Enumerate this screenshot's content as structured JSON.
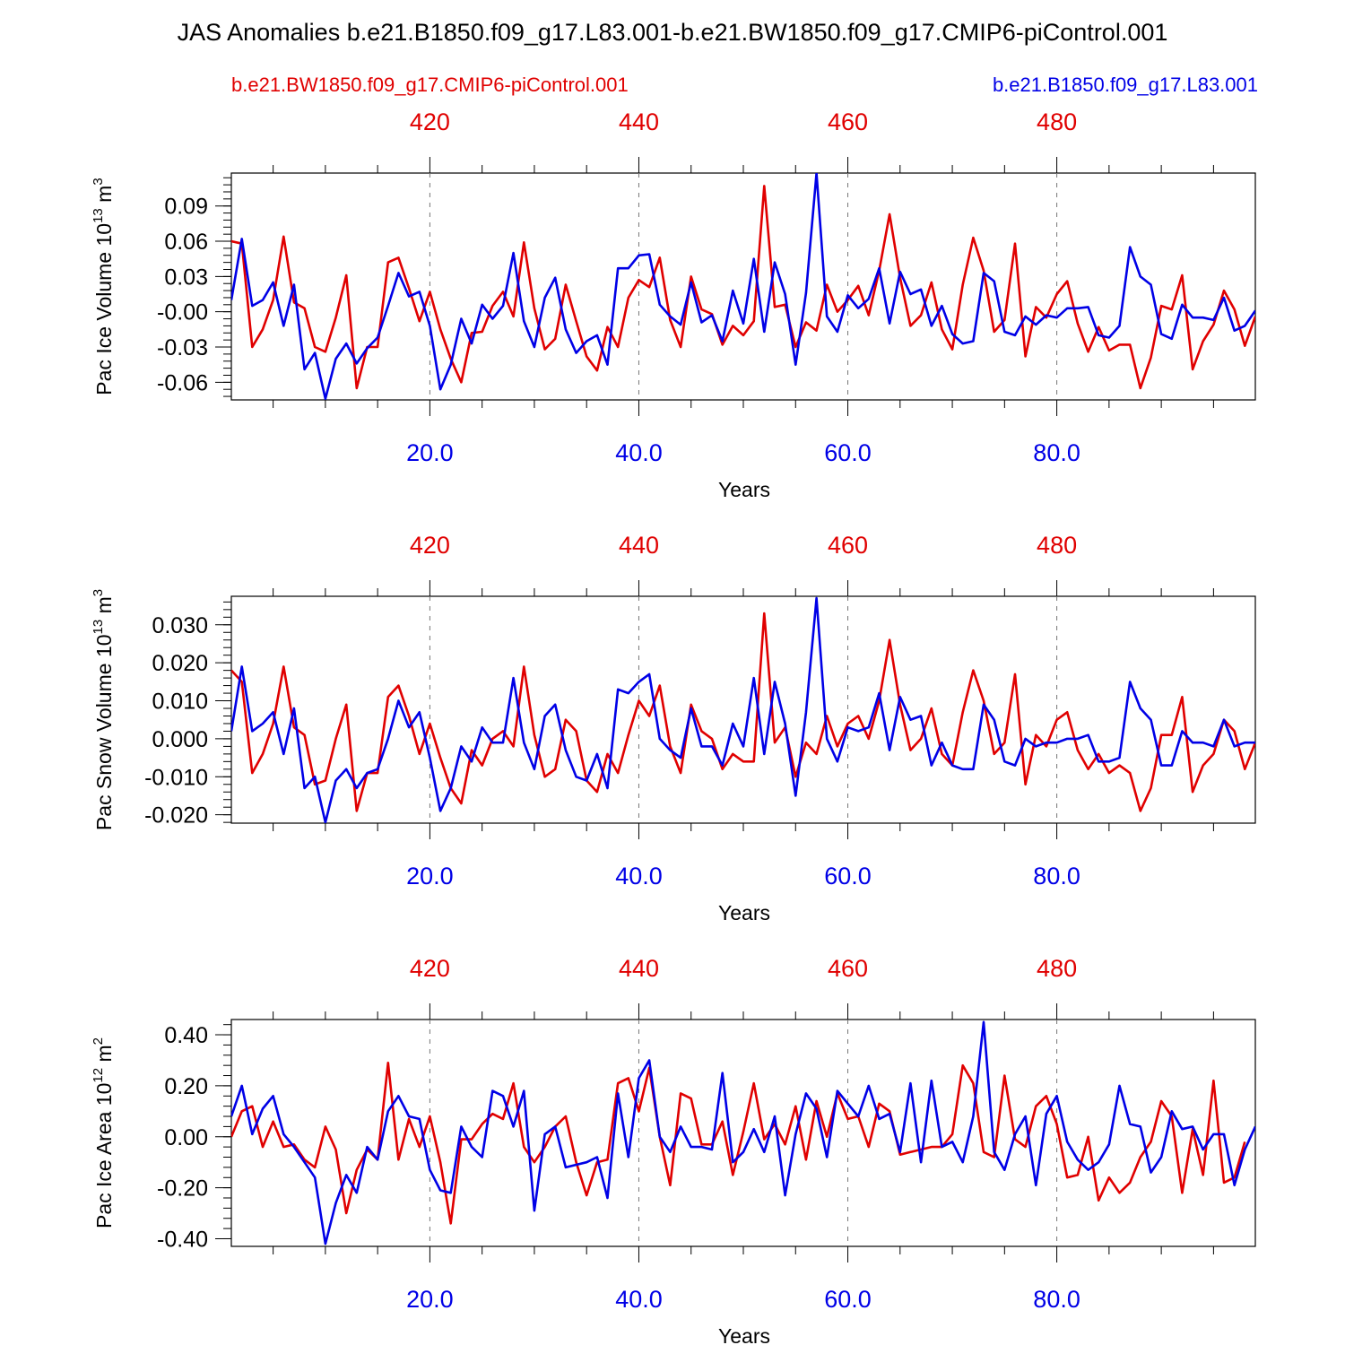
{
  "title": "JAS Anomalies b.e21.B1850.f09_g17.L83.001-b.e21.BW1850.f09_g17.CMIP6-piControl.001",
  "legend": {
    "left_label": "b.e21.BW1850.f09_g17.CMIP6-piControl.001",
    "right_label": "b.e21.B1850.f09_g17.L83.001"
  },
  "colors": {
    "case1": "#e00000",
    "case2": "#0000e6",
    "grid": "#777777"
  },
  "chart_data": [
    {
      "type": "line",
      "ylabel_main": "Pac Ice Volume 10",
      "ylabel_exp": "13",
      "ylabel_unit": " m",
      "ylabel_unit_exp": "3",
      "xlabel": "Years",
      "xlim": [
        1,
        99
      ],
      "top_xlim": [
        401,
        499
      ],
      "ylim": [
        -0.075,
        0.118
      ],
      "yticks": [
        -0.06,
        -0.03,
        0.0,
        0.03,
        0.06,
        0.09
      ],
      "ytick_labels": [
        "-0.06",
        "-0.03",
        "-0.00",
        "0.03",
        "0.06",
        "0.09"
      ],
      "yminor_step": 0.006,
      "xticks": [
        20,
        40,
        60,
        80
      ],
      "xtick_labels": [
        "20.0",
        "40.0",
        "60.0",
        "80.0"
      ],
      "top_xticks": [
        420,
        440,
        460,
        480
      ],
      "top_xtick_labels": [
        "420",
        "440",
        "460",
        "480"
      ],
      "series": [
        {
          "name": "b.e21.BW1850.f09_g17.CMIP6-piControl.001",
          "color": "#e00000",
          "values": [
            0.06,
            0.058,
            -0.03,
            -0.015,
            0.01,
            0.064,
            0.008,
            0.003,
            -0.03,
            -0.034,
            -0.005,
            0.031,
            -0.065,
            -0.03,
            -0.03,
            0.042,
            0.046,
            0.02,
            -0.008,
            0.017,
            -0.015,
            -0.04,
            -0.06,
            -0.018,
            -0.017,
            0.005,
            0.017,
            -0.004,
            0.059,
            0.003,
            -0.032,
            -0.023,
            0.023,
            -0.008,
            -0.038,
            -0.05,
            -0.013,
            -0.03,
            0.012,
            0.027,
            0.021,
            0.046,
            -0.007,
            -0.03,
            0.03,
            0.002,
            -0.002,
            -0.028,
            -0.012,
            -0.02,
            -0.008,
            0.107,
            0.004,
            0.006,
            -0.03,
            -0.009,
            -0.016,
            0.023,
            0.0,
            0.01,
            0.022,
            -0.003,
            0.035,
            0.083,
            0.029,
            -0.012,
            -0.003,
            0.025,
            -0.015,
            -0.032,
            0.023,
            0.063,
            0.035,
            -0.017,
            -0.007,
            0.058,
            -0.038,
            0.004,
            -0.005,
            0.015,
            0.026,
            -0.01,
            -0.034,
            -0.013,
            -0.033,
            -0.028,
            -0.028,
            -0.065,
            -0.039,
            0.005,
            0.002,
            0.031,
            -0.049,
            -0.025,
            -0.011,
            0.018,
            0.002,
            -0.029,
            -0.004
          ]
        },
        {
          "name": "b.e21.B1850.f09_g17.L83.001",
          "color": "#0000e6",
          "values": [
            0.01,
            0.062,
            0.005,
            0.01,
            0.025,
            -0.012,
            0.023,
            -0.049,
            -0.035,
            -0.074,
            -0.04,
            -0.027,
            -0.044,
            -0.031,
            -0.022,
            0.005,
            0.033,
            0.013,
            0.017,
            -0.012,
            -0.066,
            -0.045,
            -0.006,
            -0.027,
            0.006,
            -0.006,
            0.005,
            0.05,
            -0.008,
            -0.03,
            0.012,
            0.029,
            -0.015,
            -0.035,
            -0.025,
            -0.02,
            -0.045,
            0.037,
            0.037,
            0.048,
            0.049,
            0.006,
            -0.004,
            -0.011,
            0.025,
            -0.009,
            -0.003,
            -0.025,
            0.018,
            -0.01,
            0.045,
            -0.017,
            0.042,
            0.015,
            -0.045,
            0.016,
            0.118,
            -0.004,
            -0.017,
            0.014,
            0.003,
            0.011,
            0.037,
            -0.01,
            0.034,
            0.015,
            0.019,
            -0.012,
            0.005,
            -0.019,
            -0.027,
            -0.025,
            0.033,
            0.026,
            -0.017,
            -0.02,
            -0.004,
            -0.011,
            -0.003,
            -0.005,
            0.003,
            0.003,
            0.004,
            -0.02,
            -0.022,
            -0.012,
            0.055,
            0.03,
            0.023,
            -0.019,
            -0.023,
            0.006,
            -0.005,
            -0.005,
            -0.007,
            0.012,
            -0.016,
            -0.012,
            0.001
          ]
        }
      ]
    },
    {
      "type": "line",
      "ylabel_main": "Pac Snow Volume 10",
      "ylabel_exp": "13",
      "ylabel_unit": " m",
      "ylabel_unit_exp": "3",
      "xlabel": "Years",
      "xlim": [
        1,
        99
      ],
      "top_xlim": [
        401,
        499
      ],
      "ylim": [
        -0.0222,
        0.0375
      ],
      "yticks": [
        -0.02,
        -0.01,
        0.0,
        0.01,
        0.02,
        0.03
      ],
      "ytick_labels": [
        "-0.020",
        "-0.010",
        "0.000",
        "0.010",
        "0.020",
        "0.030"
      ],
      "yminor_step": 0.002,
      "xticks": [
        20,
        40,
        60,
        80
      ],
      "xtick_labels": [
        "20.0",
        "40.0",
        "60.0",
        "80.0"
      ],
      "top_xticks": [
        420,
        440,
        460,
        480
      ],
      "top_xtick_labels": [
        "420",
        "440",
        "460",
        "480"
      ],
      "series": [
        {
          "name": "b.e21.BW1850.f09_g17.CMIP6-piControl.001",
          "color": "#e00000",
          "values": [
            0.018,
            0.015,
            -0.009,
            -0.004,
            0.004,
            0.019,
            0.003,
            0.001,
            -0.012,
            -0.011,
            0.0,
            0.009,
            -0.019,
            -0.009,
            -0.009,
            0.011,
            0.014,
            0.006,
            -0.004,
            0.004,
            -0.005,
            -0.013,
            -0.017,
            -0.003,
            -0.007,
            0.0,
            0.002,
            -0.002,
            0.019,
            0.001,
            -0.01,
            -0.008,
            0.005,
            0.002,
            -0.011,
            -0.014,
            -0.004,
            -0.009,
            0.001,
            0.01,
            0.006,
            0.014,
            -0.002,
            -0.009,
            0.009,
            0.002,
            0.0,
            -0.008,
            -0.004,
            -0.006,
            -0.006,
            0.033,
            -0.001,
            0.003,
            -0.01,
            -0.001,
            -0.004,
            0.006,
            -0.002,
            0.004,
            0.006,
            -0.0,
            0.01,
            0.026,
            0.009,
            -0.003,
            0.0,
            0.008,
            -0.004,
            -0.007,
            0.007,
            0.018,
            0.01,
            -0.004,
            -0.001,
            0.017,
            -0.012,
            0.001,
            -0.002,
            0.005,
            0.007,
            -0.003,
            -0.008,
            -0.004,
            -0.009,
            -0.007,
            -0.009,
            -0.019,
            -0.013,
            0.001,
            0.001,
            0.011,
            -0.014,
            -0.007,
            -0.004,
            0.005,
            0.002,
            -0.008,
            -0.001
          ]
        },
        {
          "name": "b.e21.B1850.f09_g17.L83.001",
          "color": "#0000e6",
          "values": [
            0.002,
            0.019,
            0.002,
            0.004,
            0.007,
            -0.004,
            0.008,
            -0.013,
            -0.01,
            -0.022,
            -0.011,
            -0.008,
            -0.013,
            -0.009,
            -0.008,
            -0.0,
            0.01,
            0.003,
            0.007,
            -0.005,
            -0.019,
            -0.013,
            -0.002,
            -0.006,
            0.003,
            -0.001,
            -0.001,
            0.016,
            -0.001,
            -0.008,
            0.006,
            0.009,
            -0.003,
            -0.01,
            -0.011,
            -0.004,
            -0.013,
            0.013,
            0.012,
            0.015,
            0.017,
            0.0,
            -0.003,
            -0.005,
            0.008,
            -0.002,
            -0.002,
            -0.007,
            0.004,
            -0.002,
            0.016,
            -0.004,
            0.015,
            0.004,
            -0.015,
            0.007,
            0.037,
            0.0,
            -0.006,
            0.003,
            0.002,
            0.003,
            0.012,
            -0.003,
            0.011,
            0.005,
            0.006,
            -0.007,
            -0.001,
            -0.007,
            -0.008,
            -0.008,
            0.009,
            0.005,
            -0.006,
            -0.007,
            0.0,
            -0.002,
            -0.001,
            -0.001,
            0.0,
            0.0,
            0.001,
            -0.006,
            -0.006,
            -0.005,
            0.015,
            0.008,
            0.005,
            -0.007,
            -0.007,
            0.002,
            -0.001,
            -0.001,
            -0.002,
            0.005,
            -0.002,
            -0.001,
            -0.001
          ]
        }
      ]
    },
    {
      "type": "line",
      "ylabel_main": "Pac Ice Area 10",
      "ylabel_exp": "12",
      "ylabel_unit": " m",
      "ylabel_unit_exp": "2",
      "xlabel": "Years",
      "xlim": [
        1,
        99
      ],
      "top_xlim": [
        401,
        499
      ],
      "ylim": [
        -0.43,
        0.46
      ],
      "yticks": [
        -0.4,
        -0.2,
        0.0,
        0.2,
        0.4
      ],
      "ytick_labels": [
        "-0.40",
        "-0.20",
        "0.00",
        "0.20",
        "0.40"
      ],
      "yminor_step": 0.04,
      "xticks": [
        20,
        40,
        60,
        80
      ],
      "xtick_labels": [
        "20.0",
        "40.0",
        "60.0",
        "80.0"
      ],
      "top_xticks": [
        420,
        440,
        460,
        480
      ],
      "top_xtick_labels": [
        "420",
        "440",
        "460",
        "480"
      ],
      "series": [
        {
          "name": "b.e21.BW1850.f09_g17.CMIP6-piControl.001",
          "color": "#e00000",
          "values": [
            0.0,
            0.1,
            0.12,
            -0.04,
            0.06,
            -0.04,
            -0.03,
            -0.09,
            -0.12,
            0.04,
            -0.05,
            -0.3,
            -0.13,
            -0.05,
            -0.09,
            0.29,
            -0.09,
            0.07,
            -0.04,
            0.08,
            -0.1,
            -0.34,
            -0.01,
            -0.01,
            0.05,
            0.09,
            0.07,
            0.21,
            -0.04,
            -0.1,
            -0.04,
            0.04,
            0.08,
            -0.1,
            -0.23,
            -0.1,
            -0.09,
            0.21,
            0.23,
            0.1,
            0.27,
            0.0,
            -0.19,
            0.17,
            0.15,
            -0.03,
            -0.03,
            0.06,
            -0.15,
            0.02,
            0.21,
            -0.01,
            0.05,
            -0.03,
            0.12,
            -0.09,
            0.14,
            0.0,
            0.17,
            0.07,
            0.08,
            -0.04,
            0.13,
            0.1,
            -0.07,
            -0.06,
            -0.05,
            -0.04,
            -0.04,
            0.01,
            0.28,
            0.21,
            -0.06,
            -0.08,
            0.24,
            -0.01,
            -0.04,
            0.12,
            0.16,
            0.05,
            -0.16,
            -0.15,
            0.0,
            -0.25,
            -0.16,
            -0.22,
            -0.18,
            -0.08,
            -0.02,
            0.14,
            0.08,
            -0.22,
            0.03,
            -0.15,
            0.22,
            -0.18,
            -0.16,
            -0.02
          ]
        },
        {
          "name": "b.e21.B1850.f09_g17.L83.001",
          "color": "#0000e6",
          "values": [
            0.08,
            0.2,
            0.01,
            0.11,
            0.16,
            0.01,
            -0.04,
            -0.1,
            -0.16,
            -0.42,
            -0.26,
            -0.15,
            -0.22,
            -0.04,
            -0.09,
            0.1,
            0.16,
            0.08,
            0.07,
            -0.13,
            -0.21,
            -0.22,
            0.04,
            -0.04,
            -0.08,
            0.18,
            0.16,
            0.04,
            0.18,
            -0.29,
            0.01,
            0.04,
            -0.12,
            -0.11,
            -0.1,
            -0.08,
            -0.24,
            0.17,
            -0.08,
            0.23,
            0.3,
            0.0,
            -0.06,
            0.04,
            -0.04,
            -0.04,
            -0.05,
            0.25,
            -0.1,
            -0.06,
            0.03,
            -0.06,
            0.08,
            -0.23,
            0.01,
            0.17,
            0.11,
            -0.08,
            0.18,
            0.13,
            0.08,
            0.2,
            0.07,
            0.09,
            -0.06,
            0.21,
            -0.1,
            0.22,
            -0.04,
            -0.02,
            -0.1,
            0.08,
            0.45,
            -0.06,
            -0.13,
            0.01,
            0.08,
            -0.19,
            0.09,
            0.16,
            -0.02,
            -0.09,
            -0.13,
            -0.1,
            -0.03,
            0.2,
            0.05,
            0.04,
            -0.14,
            -0.08,
            0.1,
            0.03,
            0.04,
            -0.05,
            0.01,
            0.01,
            -0.19,
            -0.05,
            0.04
          ]
        }
      ]
    }
  ]
}
